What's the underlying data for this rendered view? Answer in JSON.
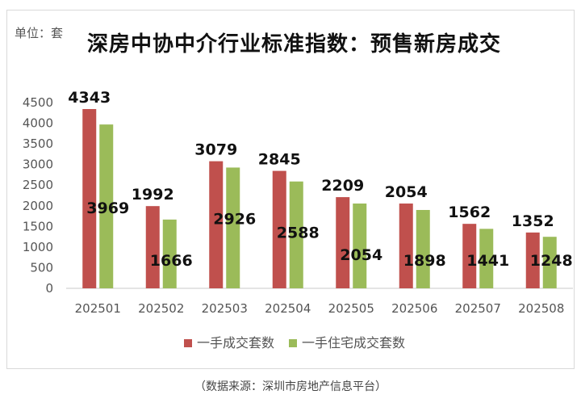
{
  "unit_label": "单位：套",
  "title": "深房中协中介行业标准指数：预售新房成交",
  "source": "（数据来源：深圳市房地产信息平台）",
  "chart_data": {
    "type": "bar",
    "categories": [
      "202501",
      "202502",
      "202503",
      "202504",
      "202505",
      "202506",
      "202507",
      "202508"
    ],
    "series": [
      {
        "name": "一手成交套数",
        "color": "#c0504d",
        "values": [
          4343,
          1992,
          3079,
          2845,
          2209,
          2054,
          1562,
          1352
        ]
      },
      {
        "name": "一手住宅成交套数",
        "color": "#9bbb59",
        "values": [
          3969,
          1666,
          2926,
          2588,
          2054,
          1898,
          1441,
          1248
        ]
      }
    ],
    "y_ticks": [
      0,
      500,
      1000,
      1500,
      2000,
      2500,
      3000,
      3500,
      4000,
      4500
    ],
    "ylim": [
      0,
      4500
    ],
    "grid": false,
    "legend_position": "bottom"
  }
}
